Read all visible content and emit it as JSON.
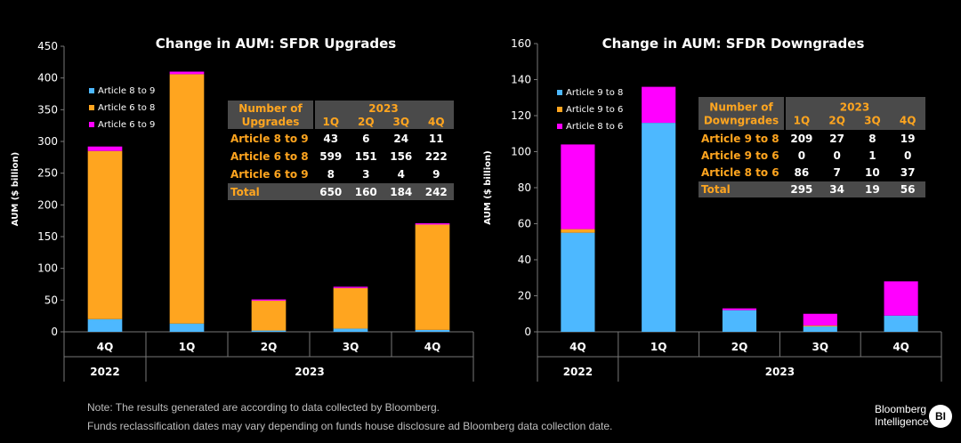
{
  "chart_data": [
    {
      "type": "bar",
      "stacked": true,
      "title": "Change in AUM: SFDR Upgrades",
      "ylabel": "AUM ($ billion)",
      "ylim": [
        0,
        450
      ],
      "yticks": [
        0,
        50,
        100,
        150,
        200,
        250,
        300,
        350,
        400,
        450
      ],
      "categories": [
        "4Q",
        "1Q",
        "2Q",
        "3Q",
        "4Q"
      ],
      "year_groups": [
        {
          "label": "2022",
          "span": [
            0,
            0
          ]
        },
        {
          "label": "2023",
          "span": [
            1,
            4
          ]
        }
      ],
      "series": [
        {
          "name": "Article 8 to 9",
          "color": "#4db8ff",
          "values": [
            20,
            13,
            2,
            5,
            3
          ]
        },
        {
          "name": "Article 6 to 8",
          "color": "#ffa51f",
          "values": [
            265,
            393,
            47,
            64,
            166
          ]
        },
        {
          "name": "Article 6 to 9",
          "color": "#ff00ff",
          "values": [
            7,
            4,
            2,
            2,
            2
          ]
        }
      ],
      "legend_position": "top-left",
      "table": {
        "header_left": [
          "Number of",
          "Upgrades"
        ],
        "year": "2023",
        "columns": [
          "1Q",
          "2Q",
          "3Q",
          "4Q"
        ],
        "rows": [
          {
            "label": "Article 8 to 9",
            "values": [
              "43",
              "6",
              "24",
              "11"
            ]
          },
          {
            "label": "Article 6 to 8",
            "values": [
              "599",
              "151",
              "156",
              "222"
            ]
          },
          {
            "label": "Article 6 to 9",
            "values": [
              "8",
              "3",
              "4",
              "9"
            ]
          },
          {
            "label": "Total",
            "values": [
              "650",
              "160",
              "184",
              "242"
            ]
          }
        ]
      }
    },
    {
      "type": "bar",
      "stacked": true,
      "title": "Change in AUM: SFDR Downgrades",
      "ylabel": "AUM ($ billion)",
      "ylim": [
        0,
        160
      ],
      "yticks": [
        0,
        20,
        40,
        60,
        80,
        100,
        120,
        140,
        160
      ],
      "categories": [
        "4Q",
        "1Q",
        "2Q",
        "3Q",
        "4Q"
      ],
      "year_groups": [
        {
          "label": "2022",
          "span": [
            0,
            0
          ]
        },
        {
          "label": "2023",
          "span": [
            1,
            4
          ]
        }
      ],
      "series": [
        {
          "name": "Article 9 to 8",
          "color": "#4db8ff",
          "values": [
            55,
            116,
            12,
            3,
            9
          ]
        },
        {
          "name": "Article 9 to 6",
          "color": "#ffa51f",
          "values": [
            2,
            0,
            0,
            0.5,
            0
          ]
        },
        {
          "name": "Article 8 to 6",
          "color": "#ff00ff",
          "values": [
            47,
            20,
            1,
            6.5,
            19
          ]
        }
      ],
      "legend_position": "top-left",
      "table": {
        "header_left": [
          "Number of",
          "Downgrades"
        ],
        "year": "2023",
        "columns": [
          "1Q",
          "2Q",
          "3Q",
          "4Q"
        ],
        "rows": [
          {
            "label": "Article 9 to 8",
            "values": [
              "209",
              "27",
              "8",
              "19"
            ]
          },
          {
            "label": "Article 9 to 6",
            "values": [
              "0",
              "0",
              "1",
              "0"
            ]
          },
          {
            "label": "Article 8 to 6",
            "values": [
              "86",
              "7",
              "10",
              "37"
            ]
          },
          {
            "label": "Total",
            "values": [
              "295",
              "34",
              "19",
              "56"
            ]
          }
        ]
      }
    }
  ],
  "notes": [
    "Note: The results generated are according to data collected by Bloomberg.",
    "Funds reclassification dates may vary depending on funds house disclosure ad Bloomberg data collection date."
  ],
  "logo": {
    "line1": "Bloomberg",
    "line2": "Intelligence",
    "badge": "BI"
  }
}
